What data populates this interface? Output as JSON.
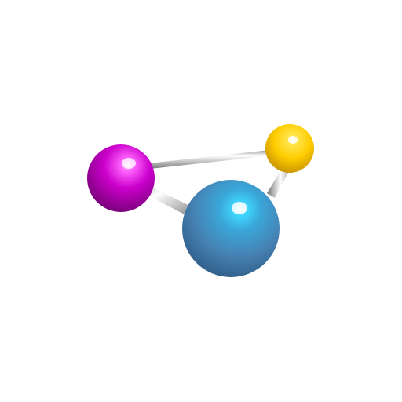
{
  "scene": {
    "background": "#ffffff",
    "atoms": [
      {
        "name": "magenta-atom",
        "color": "#cc00cc",
        "highlight": "#ffd6ff",
        "shadow": "#7a007a"
      },
      {
        "name": "gold-atom",
        "color": "#ffcc00",
        "highlight": "#fff7c2",
        "shadow": "#c79200"
      },
      {
        "name": "blue-atom",
        "color": "#4682b4",
        "highlight": "#aef2ff",
        "shadow": "#2c5a80"
      }
    ],
    "bonds": [
      {
        "name": "bond-magenta-gold",
        "from": "magenta-atom",
        "to": "gold-atom"
      },
      {
        "name": "bond-magenta-blue",
        "from": "magenta-atom",
        "to": "blue-atom"
      },
      {
        "name": "bond-gold-blue",
        "from": "gold-atom",
        "to": "blue-atom"
      }
    ],
    "bond_color": "#b8b8b8"
  }
}
